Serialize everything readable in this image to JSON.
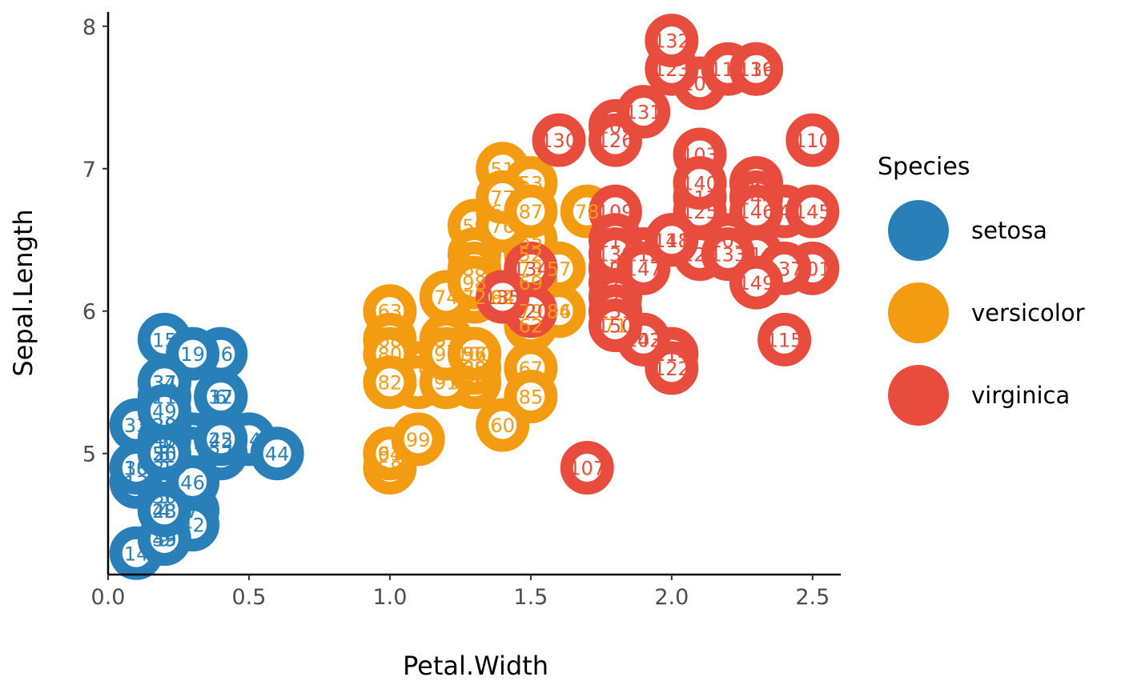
{
  "chart_data": {
    "type": "scatter",
    "xlabel": "Petal.Width",
    "ylabel": "Sepal.Length",
    "xlim": [
      0.0,
      2.6
    ],
    "ylim": [
      4.15,
      8.1
    ],
    "x_ticks": [
      {
        "value": 0.0,
        "label": "0.0"
      },
      {
        "value": 0.5,
        "label": "0.5"
      },
      {
        "value": 1.0,
        "label": "1.0"
      },
      {
        "value": 1.5,
        "label": "1.5"
      },
      {
        "value": 2.0,
        "label": "2.0"
      },
      {
        "value": 2.5,
        "label": "2.5"
      }
    ],
    "y_ticks": [
      {
        "value": 5,
        "label": "5"
      },
      {
        "value": 6,
        "label": "6"
      },
      {
        "value": 7,
        "label": "7"
      },
      {
        "value": 8,
        "label": "8"
      }
    ],
    "grid": false,
    "legend": {
      "title": "Species",
      "position": "right",
      "entries": [
        {
          "label": "setosa",
          "color": "#2980b9"
        },
        {
          "label": "versicolor",
          "color": "#f39c12"
        },
        {
          "label": "virginica",
          "color": "#e74c3c"
        }
      ]
    },
    "series": [
      {
        "name": "setosa",
        "color": "#2980b9",
        "points": [
          {
            "x": 0.2,
            "y": 5.1,
            "label": "1"
          },
          {
            "x": 0.2,
            "y": 4.9,
            "label": "2"
          },
          {
            "x": 0.2,
            "y": 4.7,
            "label": "3"
          },
          {
            "x": 0.2,
            "y": 4.6,
            "label": "4"
          },
          {
            "x": 0.2,
            "y": 5.0,
            "label": "5"
          },
          {
            "x": 0.4,
            "y": 5.4,
            "label": "6"
          },
          {
            "x": 0.3,
            "y": 4.6,
            "label": "7"
          },
          {
            "x": 0.2,
            "y": 5.0,
            "label": "8"
          },
          {
            "x": 0.2,
            "y": 4.4,
            "label": "9"
          },
          {
            "x": 0.1,
            "y": 4.9,
            "label": "10"
          },
          {
            "x": 0.2,
            "y": 5.4,
            "label": "11"
          },
          {
            "x": 0.2,
            "y": 4.8,
            "label": "12"
          },
          {
            "x": 0.1,
            "y": 4.8,
            "label": "13"
          },
          {
            "x": 0.1,
            "y": 4.3,
            "label": "14"
          },
          {
            "x": 0.2,
            "y": 5.8,
            "label": "15"
          },
          {
            "x": 0.4,
            "y": 5.7,
            "label": "16"
          },
          {
            "x": 0.4,
            "y": 5.4,
            "label": "17"
          },
          {
            "x": 0.3,
            "y": 5.1,
            "label": "18"
          },
          {
            "x": 0.3,
            "y": 5.7,
            "label": "19"
          },
          {
            "x": 0.3,
            "y": 5.1,
            "label": "20"
          },
          {
            "x": 0.2,
            "y": 5.4,
            "label": "21"
          },
          {
            "x": 0.4,
            "y": 5.1,
            "label": "22"
          },
          {
            "x": 0.2,
            "y": 4.6,
            "label": "23"
          },
          {
            "x": 0.5,
            "y": 5.1,
            "label": "24"
          },
          {
            "x": 0.2,
            "y": 4.8,
            "label": "25"
          },
          {
            "x": 0.2,
            "y": 5.0,
            "label": "26"
          },
          {
            "x": 0.4,
            "y": 5.0,
            "label": "27"
          },
          {
            "x": 0.2,
            "y": 5.2,
            "label": "28"
          },
          {
            "x": 0.2,
            "y": 5.2,
            "label": "29"
          },
          {
            "x": 0.2,
            "y": 4.7,
            "label": "30"
          },
          {
            "x": 0.2,
            "y": 4.8,
            "label": "31"
          },
          {
            "x": 0.4,
            "y": 5.4,
            "label": "32"
          },
          {
            "x": 0.1,
            "y": 5.2,
            "label": "33"
          },
          {
            "x": 0.2,
            "y": 5.5,
            "label": "34"
          },
          {
            "x": 0.2,
            "y": 4.9,
            "label": "35"
          },
          {
            "x": 0.2,
            "y": 5.0,
            "label": "36"
          },
          {
            "x": 0.2,
            "y": 5.5,
            "label": "37"
          },
          {
            "x": 0.1,
            "y": 4.9,
            "label": "38"
          },
          {
            "x": 0.2,
            "y": 4.4,
            "label": "39"
          },
          {
            "x": 0.2,
            "y": 5.1,
            "label": "40"
          },
          {
            "x": 0.3,
            "y": 5.0,
            "label": "41"
          },
          {
            "x": 0.3,
            "y": 4.5,
            "label": "42"
          },
          {
            "x": 0.2,
            "y": 4.4,
            "label": "43"
          },
          {
            "x": 0.6,
            "y": 5.0,
            "label": "44"
          },
          {
            "x": 0.4,
            "y": 5.1,
            "label": "45"
          },
          {
            "x": 0.3,
            "y": 4.8,
            "label": "46"
          },
          {
            "x": 0.2,
            "y": 5.1,
            "label": "47"
          },
          {
            "x": 0.2,
            "y": 4.6,
            "label": "48"
          },
          {
            "x": 0.2,
            "y": 5.3,
            "label": "49"
          },
          {
            "x": 0.2,
            "y": 5.0,
            "label": "50"
          }
        ]
      },
      {
        "name": "versicolor",
        "color": "#f39c12",
        "points": [
          {
            "x": 1.4,
            "y": 7.0,
            "label": "51"
          },
          {
            "x": 1.5,
            "y": 6.4,
            "label": "52"
          },
          {
            "x": 1.5,
            "y": 6.9,
            "label": "53"
          },
          {
            "x": 1.3,
            "y": 5.5,
            "label": "54"
          },
          {
            "x": 1.5,
            "y": 6.5,
            "label": "55"
          },
          {
            "x": 1.3,
            "y": 5.7,
            "label": "56"
          },
          {
            "x": 1.6,
            "y": 6.3,
            "label": "57"
          },
          {
            "x": 1.0,
            "y": 4.9,
            "label": "58"
          },
          {
            "x": 1.3,
            "y": 6.6,
            "label": "59"
          },
          {
            "x": 1.4,
            "y": 5.2,
            "label": "60"
          },
          {
            "x": 1.0,
            "y": 5.0,
            "label": "61"
          },
          {
            "x": 1.5,
            "y": 5.9,
            "label": "62"
          },
          {
            "x": 1.0,
            "y": 6.0,
            "label": "63"
          },
          {
            "x": 1.4,
            "y": 6.1,
            "label": "64"
          },
          {
            "x": 1.3,
            "y": 5.6,
            "label": "65"
          },
          {
            "x": 1.4,
            "y": 6.7,
            "label": "66"
          },
          {
            "x": 1.5,
            "y": 5.6,
            "label": "67"
          },
          {
            "x": 1.0,
            "y": 5.8,
            "label": "68"
          },
          {
            "x": 1.5,
            "y": 6.2,
            "label": "69"
          },
          {
            "x": 1.1,
            "y": 5.6,
            "label": "70"
          },
          {
            "x": 1.8,
            "y": 5.9,
            "label": "71"
          },
          {
            "x": 1.3,
            "y": 6.1,
            "label": "72"
          },
          {
            "x": 1.5,
            "y": 6.3,
            "label": "73"
          },
          {
            "x": 1.2,
            "y": 6.1,
            "label": "74"
          },
          {
            "x": 1.3,
            "y": 6.4,
            "label": "75"
          },
          {
            "x": 1.4,
            "y": 6.6,
            "label": "76"
          },
          {
            "x": 1.4,
            "y": 6.8,
            "label": "77"
          },
          {
            "x": 1.7,
            "y": 6.7,
            "label": "78"
          },
          {
            "x": 1.5,
            "y": 6.0,
            "label": "79"
          },
          {
            "x": 1.0,
            "y": 5.7,
            "label": "80"
          },
          {
            "x": 1.1,
            "y": 5.5,
            "label": "81"
          },
          {
            "x": 1.0,
            "y": 5.5,
            "label": "82"
          },
          {
            "x": 1.2,
            "y": 5.8,
            "label": "83"
          },
          {
            "x": 1.6,
            "y": 6.0,
            "label": "84"
          },
          {
            "x": 1.5,
            "y": 5.4,
            "label": "85"
          },
          {
            "x": 1.6,
            "y": 6.0,
            "label": "86"
          },
          {
            "x": 1.5,
            "y": 6.7,
            "label": "87"
          },
          {
            "x": 1.3,
            "y": 6.3,
            "label": "88"
          },
          {
            "x": 1.3,
            "y": 5.6,
            "label": "89"
          },
          {
            "x": 1.3,
            "y": 5.5,
            "label": "90"
          },
          {
            "x": 1.2,
            "y": 5.5,
            "label": "91"
          },
          {
            "x": 1.4,
            "y": 6.1,
            "label": "92"
          },
          {
            "x": 1.2,
            "y": 5.8,
            "label": "93"
          },
          {
            "x": 1.0,
            "y": 5.0,
            "label": "94"
          },
          {
            "x": 1.3,
            "y": 5.6,
            "label": "95"
          },
          {
            "x": 1.2,
            "y": 5.7,
            "label": "96"
          },
          {
            "x": 1.3,
            "y": 5.7,
            "label": "97"
          },
          {
            "x": 1.3,
            "y": 6.2,
            "label": "98"
          },
          {
            "x": 1.1,
            "y": 5.1,
            "label": "99"
          },
          {
            "x": 1.3,
            "y": 5.7,
            "label": "100"
          }
        ]
      },
      {
        "name": "virginica",
        "color": "#e74c3c",
        "points": [
          {
            "x": 2.5,
            "y": 6.3,
            "label": "101"
          },
          {
            "x": 1.9,
            "y": 5.8,
            "label": "102"
          },
          {
            "x": 2.1,
            "y": 7.1,
            "label": "103"
          },
          {
            "x": 1.8,
            "y": 6.3,
            "label": "104"
          },
          {
            "x": 2.2,
            "y": 6.5,
            "label": "105"
          },
          {
            "x": 2.1,
            "y": 7.6,
            "label": "106"
          },
          {
            "x": 1.7,
            "y": 4.9,
            "label": "107"
          },
          {
            "x": 1.8,
            "y": 7.3,
            "label": "108"
          },
          {
            "x": 1.8,
            "y": 6.7,
            "label": "109"
          },
          {
            "x": 2.5,
            "y": 7.2,
            "label": "110"
          },
          {
            "x": 2.0,
            "y": 6.5,
            "label": "111"
          },
          {
            "x": 1.9,
            "y": 6.4,
            "label": "112"
          },
          {
            "x": 2.1,
            "y": 6.8,
            "label": "113"
          },
          {
            "x": 2.0,
            "y": 5.7,
            "label": "114"
          },
          {
            "x": 2.4,
            "y": 5.8,
            "label": "115"
          },
          {
            "x": 2.3,
            "y": 6.4,
            "label": "116"
          },
          {
            "x": 1.8,
            "y": 6.5,
            "label": "117"
          },
          {
            "x": 2.2,
            "y": 7.7,
            "label": "118"
          },
          {
            "x": 2.3,
            "y": 7.7,
            "label": "119"
          },
          {
            "x": 1.5,
            "y": 6.0,
            "label": "120"
          },
          {
            "x": 2.3,
            "y": 6.9,
            "label": "121"
          },
          {
            "x": 2.0,
            "y": 5.6,
            "label": "122"
          },
          {
            "x": 2.0,
            "y": 7.7,
            "label": "123"
          },
          {
            "x": 1.8,
            "y": 6.3,
            "label": "124"
          },
          {
            "x": 2.1,
            "y": 6.7,
            "label": "125"
          },
          {
            "x": 1.8,
            "y": 7.2,
            "label": "126"
          },
          {
            "x": 1.8,
            "y": 6.2,
            "label": "127"
          },
          {
            "x": 1.8,
            "y": 6.1,
            "label": "128"
          },
          {
            "x": 2.1,
            "y": 6.4,
            "label": "129"
          },
          {
            "x": 1.6,
            "y": 7.2,
            "label": "130"
          },
          {
            "x": 1.9,
            "y": 7.4,
            "label": "131"
          },
          {
            "x": 2.0,
            "y": 7.9,
            "label": "132"
          },
          {
            "x": 2.2,
            "y": 6.4,
            "label": "133"
          },
          {
            "x": 1.5,
            "y": 6.3,
            "label": "134"
          },
          {
            "x": 1.4,
            "y": 6.1,
            "label": "135"
          },
          {
            "x": 2.3,
            "y": 7.7,
            "label": "136"
          },
          {
            "x": 2.4,
            "y": 6.3,
            "label": "137"
          },
          {
            "x": 1.8,
            "y": 6.4,
            "label": "138"
          },
          {
            "x": 1.8,
            "y": 6.0,
            "label": "139"
          },
          {
            "x": 2.1,
            "y": 6.9,
            "label": "140"
          },
          {
            "x": 2.4,
            "y": 6.7,
            "label": "141"
          },
          {
            "x": 2.3,
            "y": 6.9,
            "label": "142"
          },
          {
            "x": 1.9,
            "y": 5.8,
            "label": "143"
          },
          {
            "x": 2.3,
            "y": 6.8,
            "label": "144"
          },
          {
            "x": 2.5,
            "y": 6.7,
            "label": "145"
          },
          {
            "x": 2.3,
            "y": 6.7,
            "label": "146"
          },
          {
            "x": 1.9,
            "y": 6.3,
            "label": "147"
          },
          {
            "x": 2.0,
            "y": 6.5,
            "label": "148"
          },
          {
            "x": 2.3,
            "y": 6.2,
            "label": "149"
          },
          {
            "x": 1.8,
            "y": 5.9,
            "label": "150"
          }
        ]
      }
    ]
  }
}
